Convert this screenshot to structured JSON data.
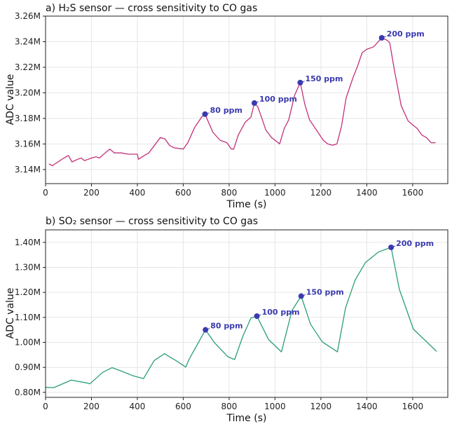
{
  "chart_data": [
    {
      "type": "line",
      "title": "a) H₂S sensor — cross sensitivity to CO gas",
      "xlabel": "Time (s)",
      "ylabel": "ADC value",
      "xlim": [
        0,
        1753
      ],
      "ylim": [
        3.129,
        3.26
      ],
      "y_unit_suffix": "M",
      "grid": true,
      "color": "#c2307a",
      "x_ticks": [
        0,
        200,
        400,
        600,
        800,
        1000,
        1200,
        1400,
        1600
      ],
      "x_tick_labels": [
        "0",
        "200",
        "400",
        "600",
        "800",
        "1000",
        "1200",
        "1400",
        "1600"
      ],
      "y_ticks": [
        3.14,
        3.16,
        3.18,
        3.2,
        3.22,
        3.24,
        3.26
      ],
      "y_tick_labels": [
        "3.14M",
        "3.16M",
        "3.18M",
        "3.20M",
        "3.22M",
        "3.24M",
        "3.26M"
      ],
      "x": [
        15,
        30,
        50,
        80,
        100,
        115,
        140,
        155,
        170,
        200,
        220,
        235,
        260,
        280,
        300,
        330,
        360,
        400,
        405,
        430,
        450,
        475,
        500,
        520,
        540,
        560,
        600,
        620,
        650,
        680,
        695,
        710,
        730,
        760,
        790,
        810,
        820,
        840,
        870,
        895,
        910,
        925,
        945,
        960,
        985,
        1000,
        1020,
        1040,
        1060,
        1085,
        1110,
        1130,
        1150,
        1180,
        1210,
        1230,
        1250,
        1270,
        1290,
        1310,
        1340,
        1360,
        1380,
        1400,
        1430,
        1465,
        1490,
        1500,
        1520,
        1550,
        1580,
        1600,
        1620,
        1640,
        1660,
        1680,
        1700
      ],
      "y": [
        3.1444,
        3.143,
        3.1455,
        3.149,
        3.151,
        3.146,
        3.148,
        3.149,
        3.147,
        3.149,
        3.15,
        3.149,
        3.153,
        3.156,
        3.153,
        3.153,
        3.152,
        3.152,
        3.148,
        3.151,
        3.153,
        3.159,
        3.165,
        3.164,
        3.159,
        3.157,
        3.156,
        3.161,
        3.173,
        3.181,
        3.1833,
        3.177,
        3.169,
        3.163,
        3.161,
        3.156,
        3.156,
        3.167,
        3.177,
        3.181,
        3.192,
        3.189,
        3.179,
        3.171,
        3.165,
        3.163,
        3.16,
        3.172,
        3.179,
        3.198,
        3.208,
        3.191,
        3.179,
        3.171,
        3.163,
        3.16,
        3.159,
        3.16,
        3.174,
        3.196,
        3.212,
        3.221,
        3.2315,
        3.234,
        3.236,
        3.243,
        3.241,
        3.239,
        3.218,
        3.19,
        3.178,
        3.175,
        3.172,
        3.167,
        3.165,
        3.161,
        3.161
      ],
      "annotations": [
        {
          "x": 695,
          "y": 3.1833,
          "label": "80 ppm"
        },
        {
          "x": 910,
          "y": 3.192,
          "label": "100 ppm"
        },
        {
          "x": 1110,
          "y": 3.208,
          "label": "150 ppm"
        },
        {
          "x": 1465,
          "y": 3.243,
          "label": "200 ppm"
        }
      ],
      "annotation_color": "#3a3ab0"
    },
    {
      "type": "line",
      "title": "b) SO₂ sensor — cross sensitivity to CO gas",
      "xlabel": "Time (s)",
      "ylabel": "ADC value",
      "xlim": [
        0,
        1753
      ],
      "ylim": [
        0.78,
        1.45
      ],
      "y_unit_suffix": "M",
      "grid": true,
      "color": "#2a9d7a",
      "x_ticks": [
        0,
        200,
        400,
        600,
        800,
        1000,
        1200,
        1400,
        1600
      ],
      "x_tick_labels": [
        "0",
        "200",
        "400",
        "600",
        "800",
        "1000",
        "1200",
        "1400",
        "1600"
      ],
      "y_ticks": [
        0.8,
        0.9,
        1.0,
        1.1,
        1.2,
        1.3,
        1.4
      ],
      "y_tick_labels": [
        "0.80M",
        "0.90M",
        "1.00M",
        "1.10M",
        "1.20M",
        "1.30M",
        "1.40M"
      ],
      "x": [
        0,
        36,
        112,
        178,
        193,
        249,
        290,
        330,
        382,
        427,
        473,
        519,
        539,
        565,
        611,
        626,
        697,
        738,
        794,
        824,
        860,
        895,
        921,
        972,
        1028,
        1074,
        1114,
        1155,
        1206,
        1272,
        1307,
        1349,
        1394,
        1450,
        1506,
        1542,
        1603,
        1704
      ],
      "y": [
        0.82,
        0.819,
        0.849,
        0.838,
        0.834,
        0.88,
        0.899,
        0.885,
        0.866,
        0.855,
        0.927,
        0.955,
        0.943,
        0.929,
        0.901,
        0.933,
        1.05,
        0.997,
        0.943,
        0.931,
        1.025,
        1.097,
        1.105,
        1.011,
        0.962,
        1.128,
        1.185,
        1.072,
        1.002,
        0.962,
        1.137,
        1.249,
        1.319,
        1.361,
        1.38,
        1.212,
        1.053,
        0.964
      ],
      "annotations": [
        {
          "x": 697,
          "y": 1.05,
          "label": "80 ppm"
        },
        {
          "x": 921,
          "y": 1.105,
          "label": "100 ppm"
        },
        {
          "x": 1114,
          "y": 1.185,
          "label": "150 ppm"
        },
        {
          "x": 1506,
          "y": 1.38,
          "label": "200 ppm"
        }
      ],
      "annotation_color": "#3a3ab0"
    }
  ]
}
